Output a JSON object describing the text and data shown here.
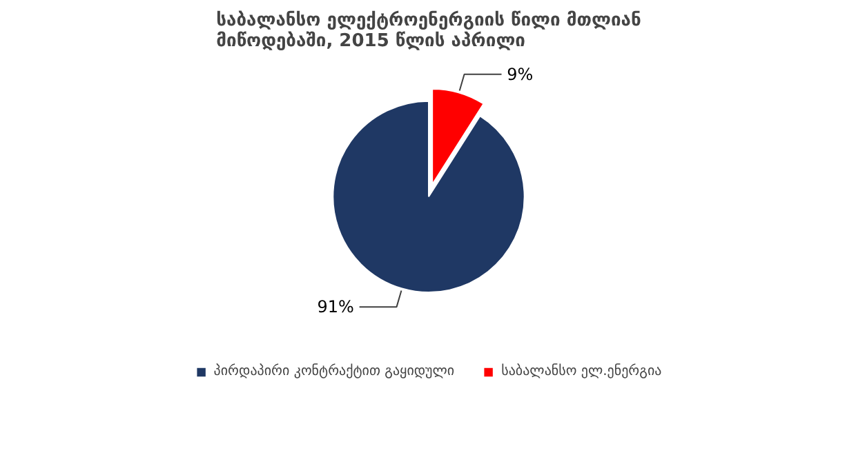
{
  "chart_data": {
    "type": "pie",
    "title": "საბალანსო ელექტროენერგიის წილი მთლიან მიწოდებაში, 2015 წლის აპრილი",
    "categories": [
      "პირდაპირი კონტრაქტით გაყიდული",
      "საბალანსო ელ.ენერგია"
    ],
    "values": [
      91,
      9
    ],
    "colors": [
      "#1f3864",
      "#ff0000"
    ],
    "value_labels": [
      "91%",
      "9%"
    ],
    "legend": "bottom"
  }
}
